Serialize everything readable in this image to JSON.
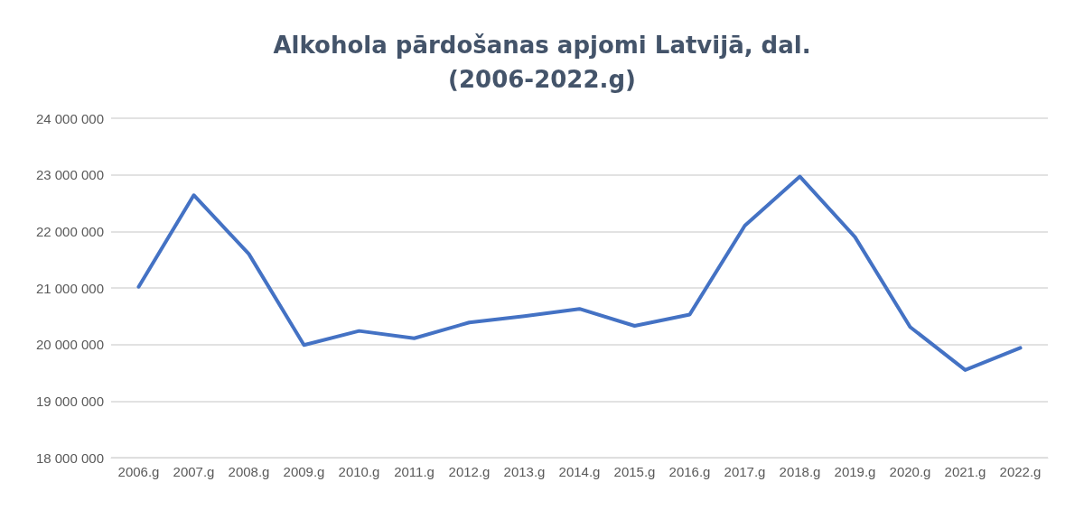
{
  "chart_data": {
    "type": "line",
    "title": "Alkohola pārdošanas apjomi Latvijā, dal.\n(2006-2022.g)",
    "categories": [
      "2006.g",
      "2007.g",
      "2008.g",
      "2009.g",
      "2010.g",
      "2011.g",
      "2012.g",
      "2013.g",
      "2014.g",
      "2015.g",
      "2016.g",
      "2017.g",
      "2018.g",
      "2019.g",
      "2020.g",
      "2021.g",
      "2022.g"
    ],
    "series": [
      {
        "color": "#4472c4",
        "values": [
          21020000,
          22640000,
          21600000,
          19990000,
          20240000,
          20110000,
          20390000,
          20500000,
          20630000,
          20330000,
          20530000,
          22100000,
          22970000,
          21900000,
          20310000,
          19550000,
          19940000
        ]
      }
    ],
    "ylim": [
      18000000,
      24000000
    ],
    "yticks": [
      {
        "value": 18000000,
        "label": "18 000 000"
      },
      {
        "value": 19000000,
        "label": "19 000 000"
      },
      {
        "value": 20000000,
        "label": "20 000 000"
      },
      {
        "value": 21000000,
        "label": "21 000 000"
      },
      {
        "value": 22000000,
        "label": "22 000 000"
      },
      {
        "value": 23000000,
        "label": "23 000 000"
      },
      {
        "value": 24000000,
        "label": "24 000 000"
      }
    ],
    "grid": "y",
    "marker": "none",
    "line_style": "solid"
  }
}
